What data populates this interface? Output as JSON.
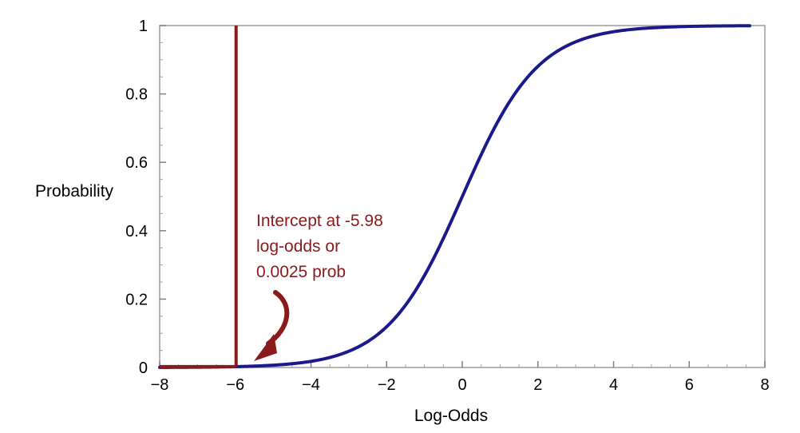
{
  "chart_data": {
    "type": "line",
    "title": "",
    "xlabel": "Log-Odds",
    "ylabel": "Probability",
    "xlim": [
      -8,
      8
    ],
    "ylim": [
      0,
      1
    ],
    "x_ticks": [
      -8,
      -6,
      -4,
      -2,
      0,
      2,
      4,
      6,
      8
    ],
    "x_tick_labels": [
      "−8",
      "−6",
      "−4",
      "−2",
      "0",
      "2",
      "4",
      "6",
      "8"
    ],
    "y_ticks": [
      0,
      0.2,
      0.4,
      0.6,
      0.8,
      1
    ],
    "y_tick_labels": [
      "0",
      "0.2",
      "0.4",
      "0.6",
      "0.8",
      "1"
    ],
    "grid": false,
    "series": [
      {
        "function": "logistic",
        "x_range": [
          -8,
          7.6
        ],
        "color": "#1A1A8C",
        "x": [
          -8,
          -7,
          -6,
          -5,
          -4,
          -3,
          -2,
          -1,
          0,
          1,
          2,
          3,
          4,
          5,
          6,
          7,
          7.6
        ],
        "y": [
          0.0003,
          0.0009,
          0.0025,
          0.0067,
          0.018,
          0.047,
          0.119,
          0.269,
          0.5,
          0.731,
          0.881,
          0.953,
          0.982,
          0.9933,
          0.9975,
          0.9991,
          0.9995
        ]
      }
    ],
    "reference_lines": {
      "vertical_x": -5.98,
      "horizontal_y": 0.0025,
      "color": "#8B1A1A"
    },
    "annotation": {
      "lines": [
        "Intercept at -5.98",
        "log-odds or",
        "0.0025 prob"
      ],
      "color": "#8B1A1A",
      "arrow_to": [
        -5.98,
        0.0025
      ]
    }
  }
}
